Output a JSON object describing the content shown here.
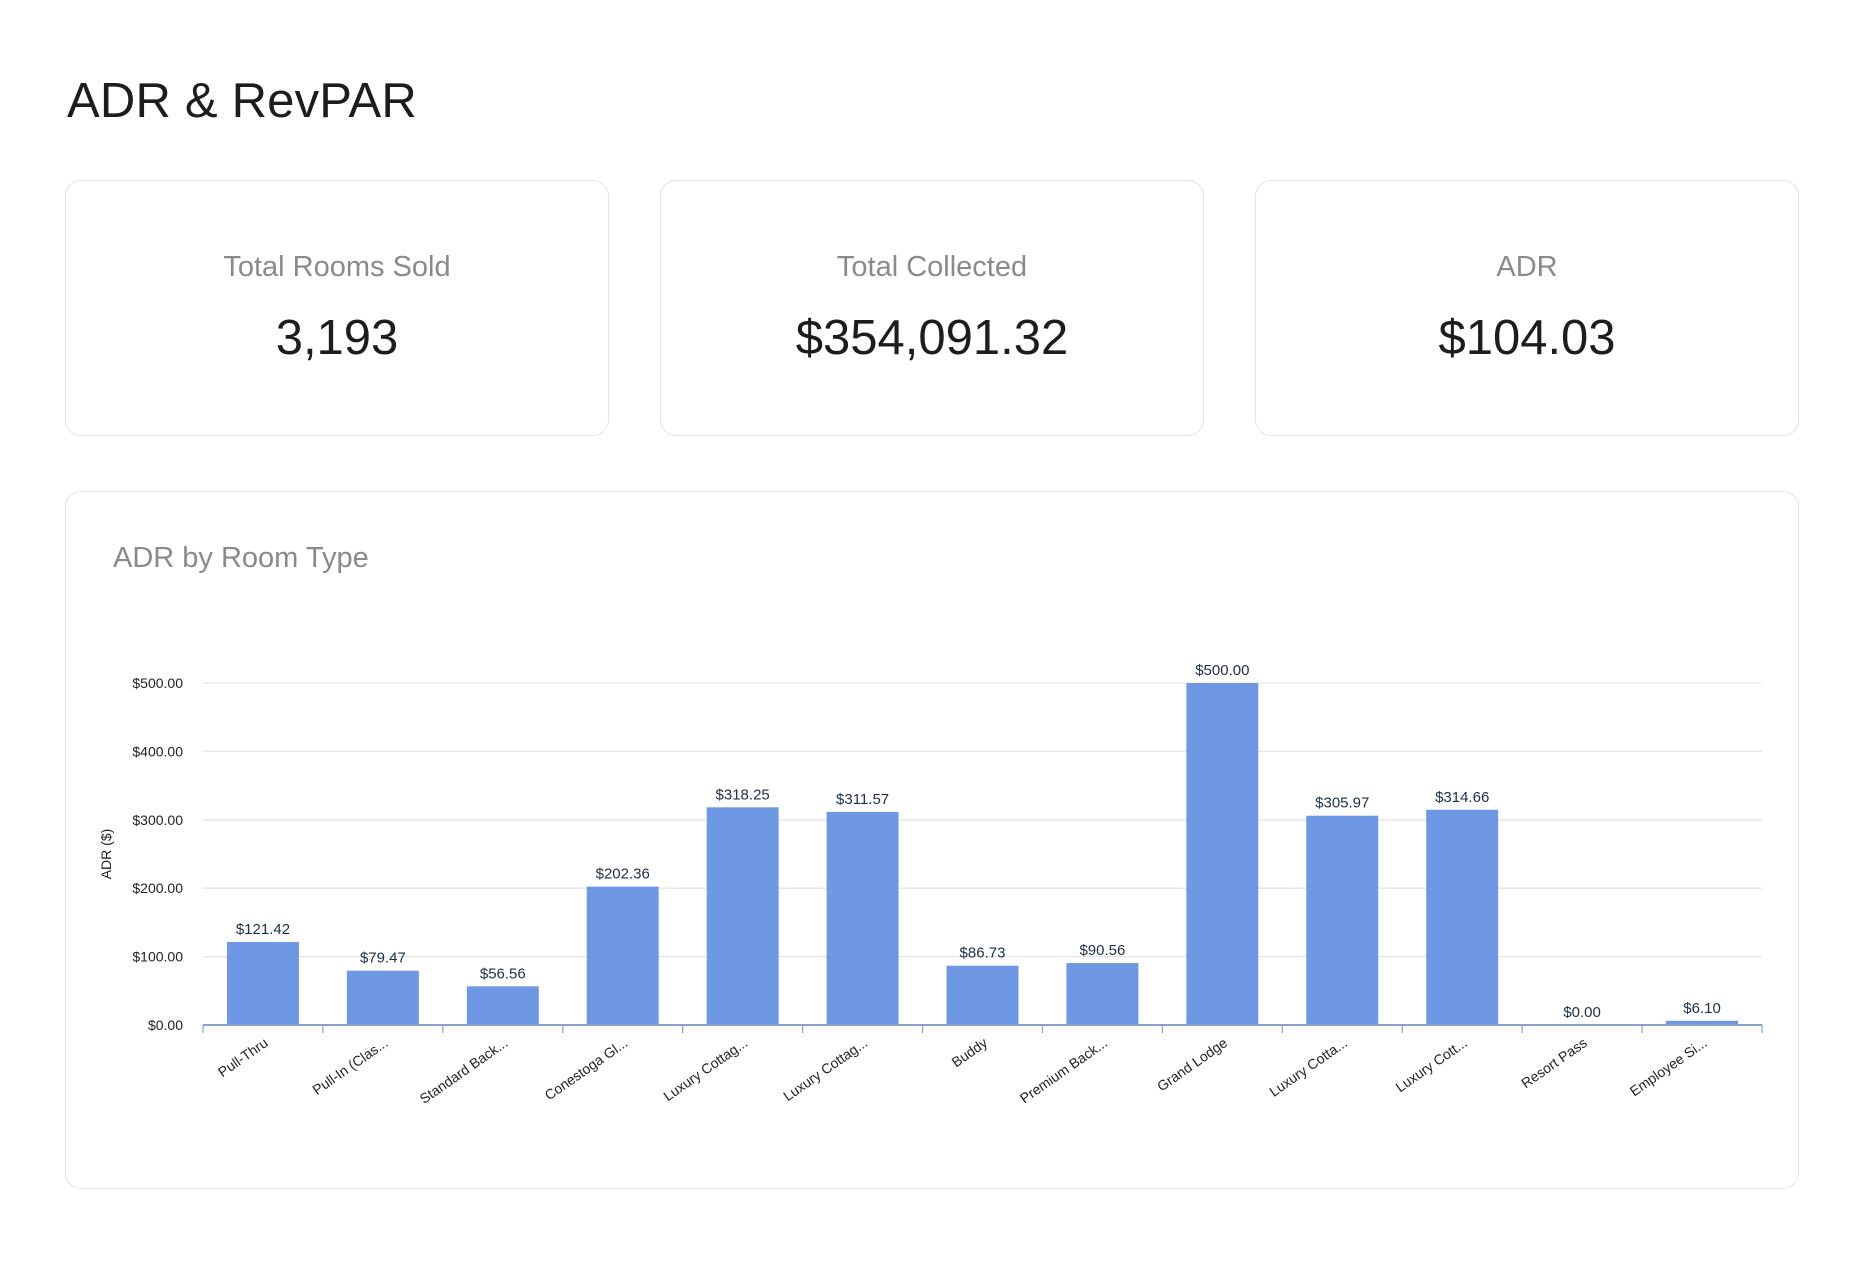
{
  "page": {
    "title": "ADR & RevPAR"
  },
  "kpis": [
    {
      "label": "Total Rooms Sold",
      "value": "3,193"
    },
    {
      "label": "Total Collected",
      "value": "$354,091.32"
    },
    {
      "label": "ADR",
      "value": "$104.03"
    }
  ],
  "colors": {
    "bar": "#6e98e3",
    "axis": "#8aa0c8",
    "grid": "#e6e6e6",
    "tick_text": "#222222",
    "data_label": "#1c2f4a"
  },
  "chart_data": {
    "type": "bar",
    "title": "ADR by Room Type",
    "ylabel": "ADR ($)",
    "xlabel": "",
    "ylim": [
      0,
      500
    ],
    "yticks": [
      0,
      100,
      200,
      300,
      400,
      500
    ],
    "ytick_labels": [
      "$0.00",
      "$100.00",
      "$200.00",
      "$300.00",
      "$400.00",
      "$500.00"
    ],
    "grid": true,
    "legend": "none",
    "categories": [
      "Pull-Thru",
      "Pull-In (Clas...",
      "Standard Back...",
      "Conestoga Gl...",
      "Luxury Cottag...",
      "Luxury Cottag...",
      "Buddy",
      "Premium Back...",
      "Grand Lodge",
      "Luxury Cotta...",
      "Luxury Cott...",
      "Resort Pass",
      "Employee Si..."
    ],
    "values": [
      121.42,
      79.47,
      56.56,
      202.36,
      318.25,
      311.57,
      86.73,
      90.56,
      500.0,
      305.97,
      314.66,
      0.0,
      6.1
    ],
    "value_labels": [
      "$121.42",
      "$79.47",
      "$56.56",
      "$202.36",
      "$318.25",
      "$311.57",
      "$86.73",
      "$90.56",
      "$500.00",
      "$305.97",
      "$314.66",
      "$0.00",
      "$6.10"
    ]
  }
}
